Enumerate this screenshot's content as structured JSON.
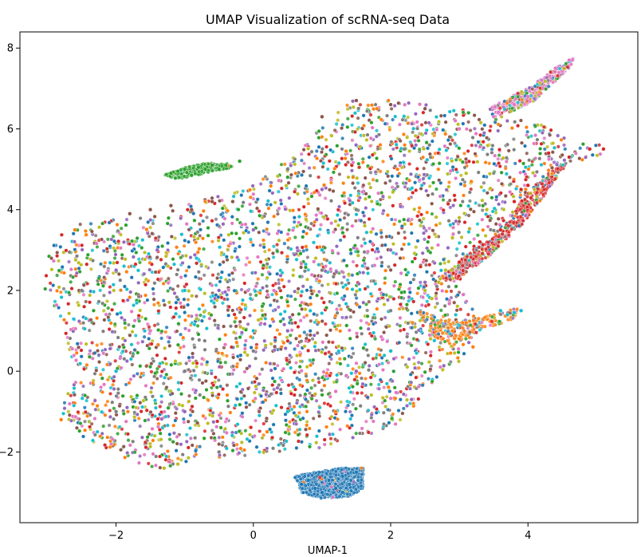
{
  "chart_data": {
    "type": "scatter",
    "title": "UMAP Visualization of scRNA-seq Data",
    "xlabel": "UMAP-1",
    "ylabel": "",
    "xlim": [
      -3.4,
      5.6
    ],
    "ylim": [
      -3.75,
      8.4
    ],
    "x_ticks": [
      -2,
      0,
      2,
      4
    ],
    "y_ticks": [
      -2,
      0,
      2,
      4,
      6,
      8
    ],
    "x_tick_labels": [
      "−2",
      "0",
      "2",
      "4"
    ],
    "y_tick_labels": [
      "−2",
      "0",
      "2",
      "4",
      "6",
      "8"
    ],
    "grid": false,
    "legend": "none",
    "palette": [
      "#1f77b4",
      "#ff7f0e",
      "#2ca02c",
      "#d62728",
      "#9467bd",
      "#8c564b",
      "#e377c2",
      "#7f7f7f",
      "#bcbd22",
      "#17becf"
    ],
    "series": [
      {
        "values": [
          [
            0.7,
            -2.8
          ],
          [
            0.9,
            -2.9
          ],
          [
            1.0,
            -3.0
          ],
          [
            1.1,
            -2.7
          ],
          [
            1.2,
            -2.9
          ],
          [
            1.3,
            -2.6
          ],
          [
            1.4,
            -2.8
          ],
          [
            1.5,
            -2.5
          ],
          [
            1.3,
            -3.0
          ],
          [
            0.8,
            -2.7
          ]
        ]
      },
      {
        "values": [
          [
            3.0,
            0.8
          ],
          [
            3.1,
            1.2
          ],
          [
            2.9,
            1.0
          ],
          [
            3.2,
            0.6
          ],
          [
            -2.8,
            -1.2
          ],
          [
            -2.6,
            3.5
          ],
          [
            0.2,
            -1.5
          ],
          [
            1.2,
            -1.0
          ],
          [
            2.1,
            5.0
          ],
          [
            1.8,
            6.5
          ]
        ]
      },
      {
        "values": [
          [
            -1.2,
            4.9
          ],
          [
            -1.0,
            5.0
          ],
          [
            -0.8,
            5.05
          ],
          [
            -0.6,
            5.1
          ],
          [
            -0.4,
            5.1
          ],
          [
            -0.2,
            5.2
          ],
          [
            -1.1,
            4.95
          ],
          [
            -0.9,
            4.85
          ],
          [
            -0.7,
            5.0
          ],
          [
            -0.5,
            5.0
          ]
        ]
      },
      {
        "values": [
          [
            4.3,
            5.4
          ],
          [
            4.6,
            5.3
          ],
          [
            4.9,
            5.5
          ],
          [
            5.1,
            5.5
          ],
          [
            3.9,
            4.5
          ],
          [
            3.6,
            3.5
          ],
          [
            3.3,
            3.2
          ],
          [
            3.0,
            2.7
          ],
          [
            3.8,
            4.2
          ],
          [
            4.0,
            4.6
          ]
        ]
      },
      {
        "values": [
          [
            -1.4,
            3.0
          ],
          [
            -0.5,
            2.0
          ],
          [
            0.5,
            1.0
          ],
          [
            1.5,
            0.0
          ],
          [
            2.5,
            2.2
          ],
          [
            -2.0,
            2.5
          ],
          [
            0.0,
            3.5
          ],
          [
            1.0,
            4.5
          ],
          [
            -1.0,
            -1.0
          ],
          [
            2.0,
            3.0
          ]
        ]
      },
      {
        "values": [
          [
            -1.5,
            4.0
          ],
          [
            -1.2,
            4.1
          ],
          [
            -0.9,
            4.0
          ],
          [
            -0.6,
            4.2
          ],
          [
            1.5,
            6.7
          ],
          [
            2.0,
            6.6
          ],
          [
            2.5,
            6.5
          ],
          [
            -1.8,
            3.9
          ],
          [
            -0.3,
            4.2
          ],
          [
            1.0,
            6.3
          ]
        ]
      },
      {
        "values": [
          [
            3.5,
            6.3
          ],
          [
            3.8,
            6.6
          ],
          [
            4.0,
            6.8
          ],
          [
            4.2,
            7.2
          ],
          [
            4.4,
            7.5
          ],
          [
            4.6,
            7.7
          ],
          [
            3.0,
            6.0
          ],
          [
            0.3,
            2.0
          ],
          [
            -1.5,
            1.0
          ],
          [
            1.2,
            -0.5
          ]
        ]
      },
      {
        "values": [
          [
            -2.0,
            -1.0
          ],
          [
            -1.0,
            0.0
          ],
          [
            0.0,
            0.5
          ],
          [
            1.0,
            2.5
          ],
          [
            2.0,
            1.5
          ],
          [
            -2.5,
            2.0
          ],
          [
            0.5,
            5.0
          ],
          [
            1.5,
            4.0
          ],
          [
            -0.5,
            -2.0
          ],
          [
            2.2,
            5.5
          ]
        ]
      },
      {
        "values": [
          [
            2.7,
            2.2
          ],
          [
            2.8,
            2.5
          ],
          [
            2.6,
            1.8
          ],
          [
            3.1,
            4.9
          ],
          [
            3.4,
            4.0
          ],
          [
            3.0,
            3.8
          ],
          [
            -1.3,
            -2.4
          ],
          [
            -1.1,
            -2.3
          ],
          [
            2.9,
            3.3
          ],
          [
            2.5,
            2.0
          ]
        ]
      },
      {
        "values": [
          [
            3.6,
            1.5
          ],
          [
            3.7,
            1.4
          ],
          [
            3.8,
            1.45
          ],
          [
            3.9,
            1.5
          ],
          [
            0.0,
            1.0
          ],
          [
            -1.0,
            2.0
          ],
          [
            1.0,
            3.0
          ],
          [
            2.0,
            0.5
          ],
          [
            -2.0,
            0.0
          ],
          [
            0.5,
            -1.0
          ]
        ]
      }
    ],
    "regions": {
      "main_body": [
        [
          -3.1,
          2.1
        ],
        [
          -2.9,
          3.3
        ],
        [
          -2.6,
          3.7
        ],
        [
          -1.6,
          3.8
        ],
        [
          -1.3,
          4.0
        ],
        [
          -0.8,
          4.2
        ],
        [
          0.0,
          4.6
        ],
        [
          0.7,
          5.6
        ],
        [
          1.2,
          6.4
        ],
        [
          1.5,
          6.8
        ],
        [
          2.5,
          6.6
        ],
        [
          3.4,
          6.4
        ],
        [
          4.2,
          6.1
        ],
        [
          4.7,
          5.7
        ],
        [
          5.2,
          5.6
        ],
        [
          5.2,
          5.3
        ],
        [
          4.6,
          5.2
        ],
        [
          4.2,
          4.5
        ],
        [
          3.9,
          3.7
        ],
        [
          3.6,
          3.2
        ],
        [
          3.1,
          2.8
        ],
        [
          3.0,
          2.2
        ],
        [
          3.3,
          1.2
        ],
        [
          3.1,
          0.4
        ],
        [
          2.7,
          -0.2
        ],
        [
          2.5,
          -0.4
        ],
        [
          2.2,
          -1.3
        ],
        [
          1.7,
          -1.6
        ],
        [
          1.0,
          -1.9
        ],
        [
          0.0,
          -2.1
        ],
        [
          -0.9,
          -2.2
        ],
        [
          -1.3,
          -2.5
        ],
        [
          -1.8,
          -2.2
        ],
        [
          -2.5,
          -1.6
        ],
        [
          -2.8,
          -1.0
        ],
        [
          -2.6,
          0.0
        ],
        [
          -2.8,
          1.3
        ]
      ],
      "blue_cluster": [
        [
          0.6,
          -2.6
        ],
        [
          0.9,
          -2.5
        ],
        [
          1.3,
          -2.4
        ],
        [
          1.6,
          -2.4
        ],
        [
          1.6,
          -2.9
        ],
        [
          1.4,
          -3.1
        ],
        [
          1.0,
          -3.15
        ],
        [
          0.7,
          -3.0
        ]
      ],
      "green_cluster": [
        [
          -1.3,
          4.85
        ],
        [
          -1.0,
          5.05
        ],
        [
          -0.7,
          5.15
        ],
        [
          -0.4,
          5.15
        ],
        [
          -0.3,
          5.05
        ],
        [
          -0.7,
          4.9
        ],
        [
          -1.1,
          4.75
        ]
      ],
      "top_right_arm": [
        [
          3.4,
          6.5
        ],
        [
          4.0,
          7.0
        ],
        [
          4.4,
          7.5
        ],
        [
          4.7,
          7.8
        ],
        [
          4.6,
          7.5
        ],
        [
          4.1,
          6.7
        ],
        [
          3.6,
          6.3
        ]
      ],
      "red_arm": [
        [
          2.7,
          2.3
        ],
        [
          3.2,
          3.0
        ],
        [
          3.6,
          3.4
        ],
        [
          3.9,
          4.2
        ],
        [
          4.2,
          4.8
        ],
        [
          4.6,
          5.2
        ],
        [
          4.3,
          4.5
        ],
        [
          3.9,
          3.6
        ],
        [
          3.4,
          2.8
        ],
        [
          2.9,
          2.2
        ]
      ],
      "lower_tail": [
        [
          2.4,
          1.5
        ],
        [
          3.0,
          1.2
        ],
        [
          3.5,
          1.4
        ],
        [
          3.9,
          1.6
        ],
        [
          3.8,
          1.3
        ],
        [
          3.3,
          1.0
        ],
        [
          2.9,
          0.6
        ],
        [
          2.6,
          0.9
        ]
      ]
    }
  }
}
